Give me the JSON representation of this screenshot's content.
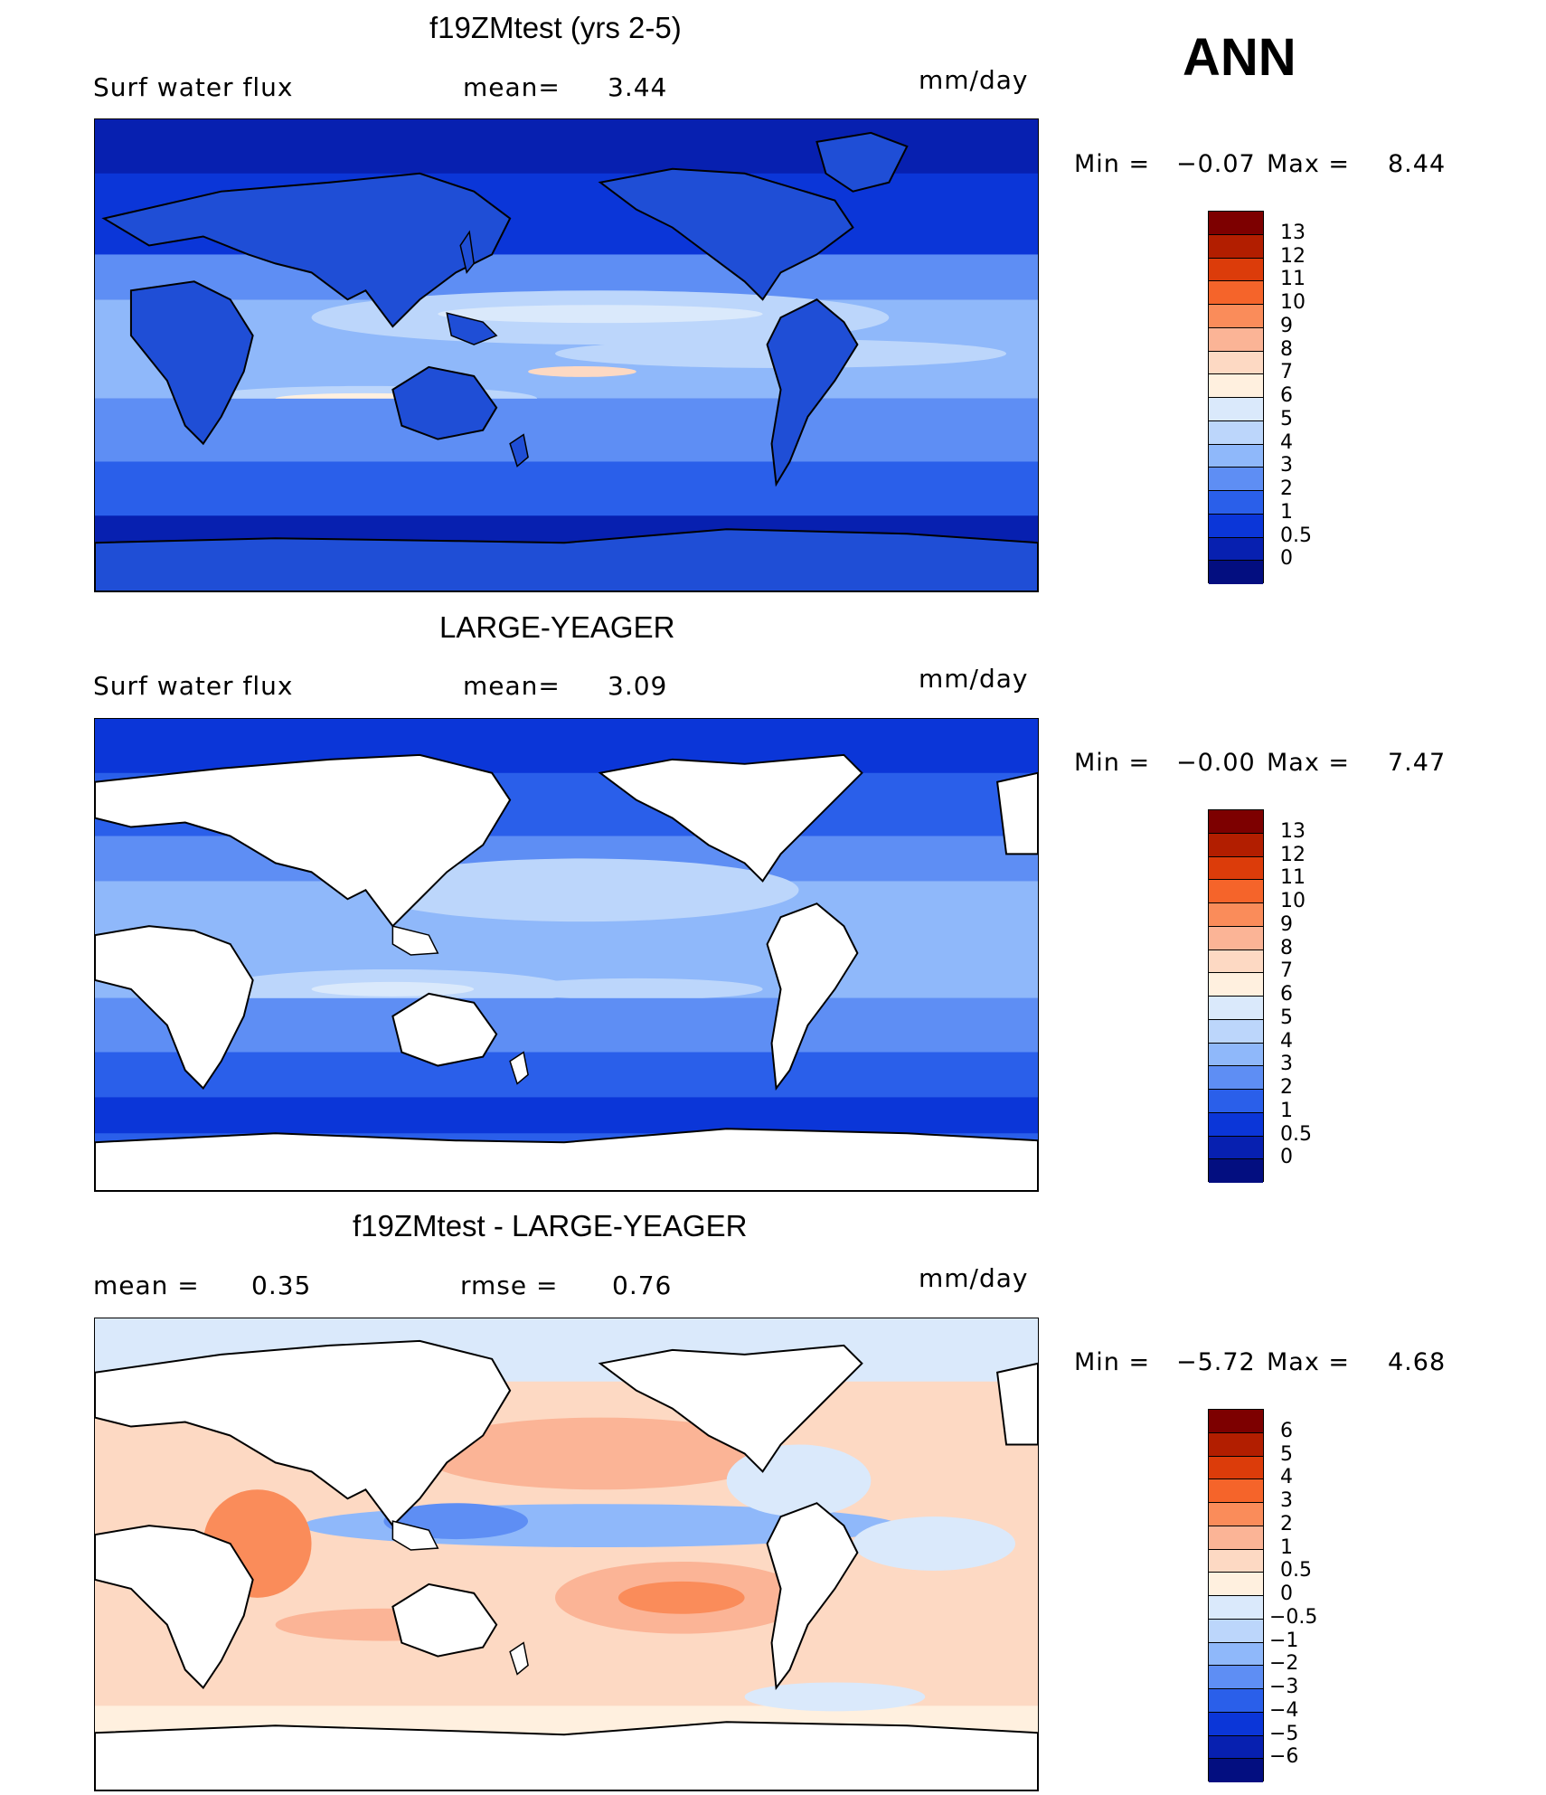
{
  "header": {
    "season": "ANN"
  },
  "panels": [
    {
      "title": "f19ZMtest (yrs 2-5)",
      "left_label": "Surf  water  flux",
      "mid_label": "mean=",
      "mid_value": "3.44",
      "units": "mm/day",
      "min_label": "Min  =",
      "min_value": "−0.07",
      "max_label": "Max  =",
      "max_value": "8.44",
      "colorbar_labels": [
        "13",
        "12",
        "11",
        "10",
        "9",
        "8",
        "7",
        "6",
        "5",
        "4",
        "3",
        "2",
        "1",
        "0.5",
        "0"
      ],
      "colorbar_colors": [
        "#7d0000",
        "#b21e00",
        "#dc3c0a",
        "#f5642a",
        "#fa8c5a",
        "#fbb496",
        "#fdd9c3",
        "#fff0df",
        "#dae9fb",
        "#bcd6fb",
        "#8fb8fa",
        "#5e8ef4",
        "#2a5fea",
        "#0b36d8",
        "#0720b0",
        "#030e80"
      ]
    },
    {
      "title": "LARGE-YEAGER",
      "left_label": "Surf  water  flux",
      "mid_label": "mean=",
      "mid_value": "3.09",
      "units": "mm/day",
      "min_label": "Min  =",
      "min_value": "−0.00",
      "max_label": "Max  =",
      "max_value": "7.47",
      "colorbar_labels": [
        "13",
        "12",
        "11",
        "10",
        "9",
        "8",
        "7",
        "6",
        "5",
        "4",
        "3",
        "2",
        "1",
        "0.5",
        "0"
      ],
      "colorbar_colors": [
        "#7d0000",
        "#b21e00",
        "#dc3c0a",
        "#f5642a",
        "#fa8c5a",
        "#fbb496",
        "#fdd9c3",
        "#fff0df",
        "#dae9fb",
        "#bcd6fb",
        "#8fb8fa",
        "#5e8ef4",
        "#2a5fea",
        "#0b36d8",
        "#0720b0",
        "#030e80"
      ]
    },
    {
      "title": "f19ZMtest - LARGE-YEAGER",
      "left_label": "mean  =",
      "left_value": "0.35",
      "mid_label": "rmse  =",
      "mid_value": "0.76",
      "units": "mm/day",
      "min_label": "Min  =",
      "min_value": "−5.72",
      "max_label": "Max  =",
      "max_value": "4.68",
      "colorbar_labels": [
        "6",
        "5",
        "4",
        "3",
        "2",
        "1",
        "0.5",
        "0",
        "−0.5",
        "−1",
        "−2",
        "−3",
        "−4",
        "−5",
        "−6"
      ],
      "colorbar_colors": [
        "#7d0000",
        "#b21e00",
        "#dc3c0a",
        "#f5642a",
        "#fa8c5a",
        "#fbb496",
        "#fdd9c3",
        "#fff0df",
        "#dae9fb",
        "#bcd6fb",
        "#8fb8fa",
        "#5e8ef4",
        "#2a5fea",
        "#0b36d8",
        "#0720b0",
        "#030e80"
      ]
    }
  ]
}
